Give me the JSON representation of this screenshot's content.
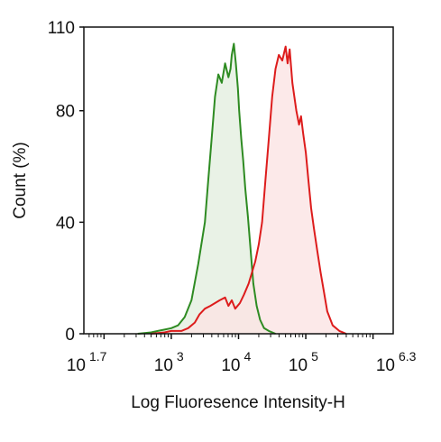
{
  "chart_data": {
    "type": "area",
    "xlabel": "Log Fluoresence Intensity-H",
    "ylabel": "Count  (%)",
    "x_scale": "log10",
    "xlim_log10": [
      1.7,
      6.3
    ],
    "ylim": [
      0,
      110
    ],
    "grid": false,
    "legend": "none",
    "y_ticks": [
      {
        "value": 0,
        "label": "0"
      },
      {
        "value": 40,
        "label": "40"
      },
      {
        "value": 80,
        "label": "80"
      },
      {
        "value": 110,
        "label": "110"
      }
    ],
    "x_tick_labels": [
      {
        "log": 1.7,
        "base": "10",
        "exp": "1.7"
      },
      {
        "log": 3,
        "base": "10",
        "exp": "3"
      },
      {
        "log": 4,
        "base": "10",
        "exp": "4"
      },
      {
        "log": 5,
        "base": "10",
        "exp": "5"
      },
      {
        "log": 6.3,
        "base": "10",
        "exp": "6.3"
      }
    ],
    "x_major_ticks_log": [
      2,
      3,
      4,
      5,
      6
    ],
    "series": [
      {
        "color": "#2e8b22",
        "fill": "#e3efe0",
        "x_log": [
          2.5,
          2.7,
          2.8,
          2.9,
          3.0,
          3.1,
          3.2,
          3.3,
          3.4,
          3.5,
          3.55,
          3.6,
          3.65,
          3.7,
          3.75,
          3.8,
          3.85,
          3.88,
          3.9,
          3.93,
          3.96,
          3.99,
          4.01,
          4.04,
          4.07,
          4.1,
          4.14,
          4.18,
          4.22,
          4.27,
          4.32,
          4.38,
          4.45,
          4.55
        ],
        "y": [
          0,
          0.5,
          1,
          1.5,
          2,
          3,
          6,
          12,
          25,
          40,
          55,
          70,
          85,
          93,
          90,
          97,
          92,
          95,
          100,
          104,
          97,
          88,
          80,
          70,
          62,
          52,
          42,
          30,
          18,
          10,
          5,
          2,
          1,
          0
        ]
      },
      {
        "color": "#dd1c1c",
        "fill": "#fbe3e3",
        "x_log": [
          2.7,
          2.9,
          3.0,
          3.15,
          3.25,
          3.35,
          3.42,
          3.5,
          3.58,
          3.65,
          3.72,
          3.8,
          3.85,
          3.9,
          3.95,
          4.02,
          4.08,
          4.15,
          4.2,
          4.25,
          4.3,
          4.35,
          4.4,
          4.45,
          4.5,
          4.55,
          4.6,
          4.65,
          4.7,
          4.73,
          4.76,
          4.8,
          4.83,
          4.86,
          4.9,
          4.93,
          4.96,
          5.0,
          5.04,
          5.08,
          5.12,
          5.17,
          5.22,
          5.27,
          5.32,
          5.4,
          5.5,
          5.6
        ],
        "y": [
          0,
          0.5,
          1,
          1,
          2,
          4,
          7,
          9,
          10,
          11,
          12,
          13,
          10,
          12,
          9,
          11,
          14,
          18,
          22,
          26,
          32,
          40,
          55,
          70,
          85,
          95,
          100,
          98,
          103,
          97,
          102,
          90,
          85,
          80,
          75,
          78,
          72,
          65,
          55,
          45,
          38,
          30,
          22,
          15,
          8,
          3,
          1,
          0
        ]
      }
    ]
  }
}
